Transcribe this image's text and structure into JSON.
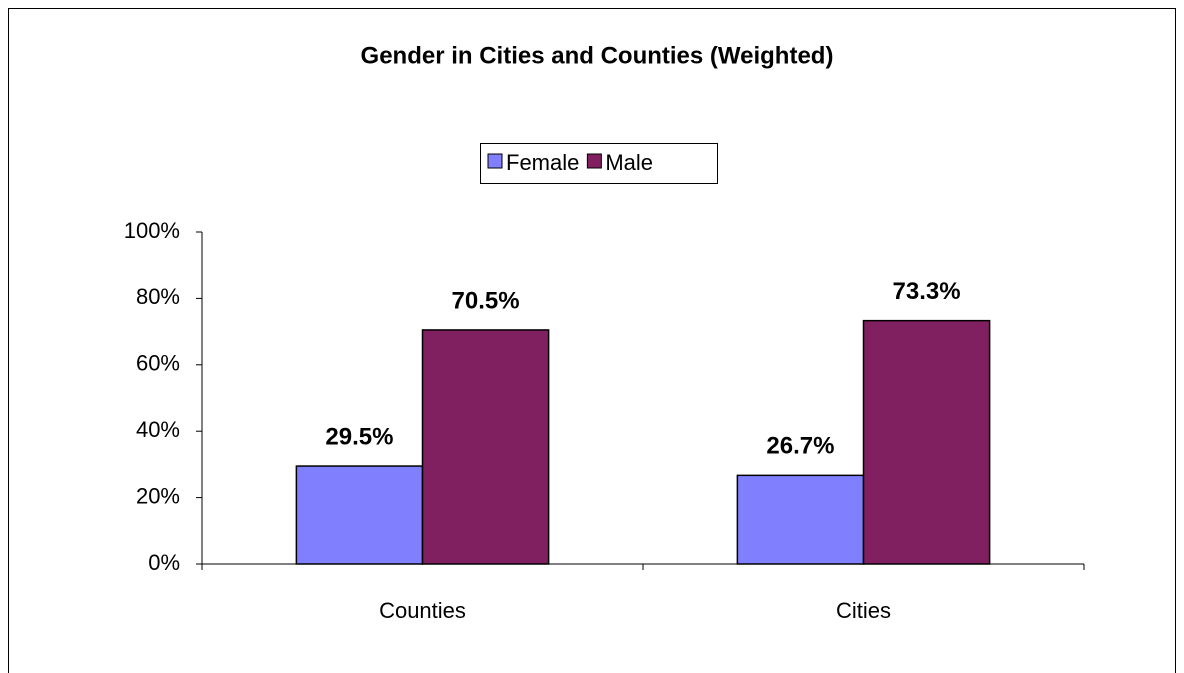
{
  "chart_data": {
    "type": "bar",
    "title": "Gender in Cities and Counties (Weighted)",
    "categories": [
      "Counties",
      "Cities"
    ],
    "series": [
      {
        "name": "Female",
        "color": "#8080ff",
        "values": [
          29.5,
          26.7
        ],
        "value_labels": [
          "29.5%",
          "26.7%"
        ]
      },
      {
        "name": "Male",
        "color": "#802060",
        "values": [
          70.5,
          73.3
        ],
        "value_labels": [
          "70.5%",
          "73.3%"
        ]
      }
    ],
    "ylim": [
      0,
      100
    ],
    "yticks": [
      {
        "value": 0,
        "label": "0%"
      },
      {
        "value": 20,
        "label": "20%"
      },
      {
        "value": 40,
        "label": "40%"
      },
      {
        "value": 60,
        "label": "60%"
      },
      {
        "value": 80,
        "label": "80%"
      },
      {
        "value": 100,
        "label": "100%"
      }
    ],
    "legend": "top",
    "grid": false
  }
}
